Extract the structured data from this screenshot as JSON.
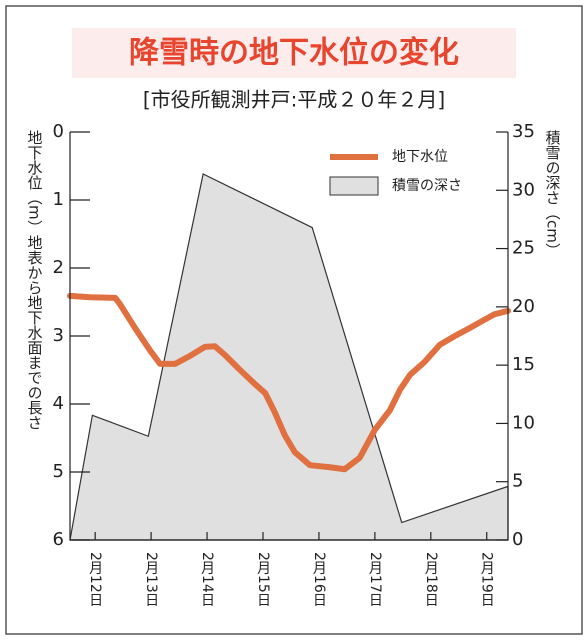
{
  "chart_data": {
    "type": "line",
    "title": "降雪時の地下水位の変化",
    "subtitle": "[市役所観測井戸:平成２０年２月]",
    "y_label": "地下水位（m）地表から地下水面までの長さ",
    "y2_label": "積雪の深さ（cm）",
    "xlim": [
      11.55,
      19.38
    ],
    "xticks": [
      {
        "value": 12,
        "label": "2月12日"
      },
      {
        "value": 13,
        "label": "2月13日"
      },
      {
        "value": 14,
        "label": "2月14日"
      },
      {
        "value": 15,
        "label": "2月15日"
      },
      {
        "value": 16,
        "label": "2月16日"
      },
      {
        "value": 17,
        "label": "2月17日"
      },
      {
        "value": 18,
        "label": "2月18日"
      },
      {
        "value": 19,
        "label": "2月19日"
      }
    ],
    "ylim": [
      6,
      0
    ],
    "yticks": [
      0,
      1,
      2,
      3,
      4,
      5,
      6
    ],
    "y2lim": [
      0,
      35
    ],
    "y2ticks": [
      0,
      5,
      10,
      15,
      20,
      25,
      30,
      35
    ],
    "legend": "upper right",
    "series": [
      {
        "name": "積雪の深さ",
        "type": "area",
        "axis": "y2",
        "color": "#e0e0e0",
        "x": [
          11.55,
          11.95,
          12.95,
          13.93,
          15.88,
          17.48,
          19.38
        ],
        "values": [
          0,
          10.7,
          8.9,
          31.4,
          26.8,
          1.5,
          4.6
        ]
      },
      {
        "name": "地下水位",
        "type": "line",
        "color": "#e07040",
        "x": [
          11.55,
          11.91,
          12.36,
          12.45,
          12.71,
          12.98,
          13.16,
          13.43,
          13.7,
          13.96,
          14.14,
          14.32,
          14.59,
          14.86,
          15.04,
          15.21,
          15.39,
          15.57,
          15.84,
          16.2,
          16.46,
          16.73,
          17.0,
          17.27,
          17.45,
          17.63,
          17.89,
          18.16,
          18.43,
          18.7,
          18.96,
          19.14,
          19.38
        ],
        "values": [
          2.41,
          2.43,
          2.44,
          2.54,
          2.88,
          3.21,
          3.41,
          3.41,
          3.29,
          3.16,
          3.15,
          3.28,
          3.5,
          3.71,
          3.84,
          4.12,
          4.46,
          4.71,
          4.9,
          4.93,
          4.96,
          4.79,
          4.38,
          4.09,
          3.79,
          3.57,
          3.38,
          3.13,
          3.0,
          2.88,
          2.76,
          2.68,
          2.63
        ]
      }
    ]
  }
}
